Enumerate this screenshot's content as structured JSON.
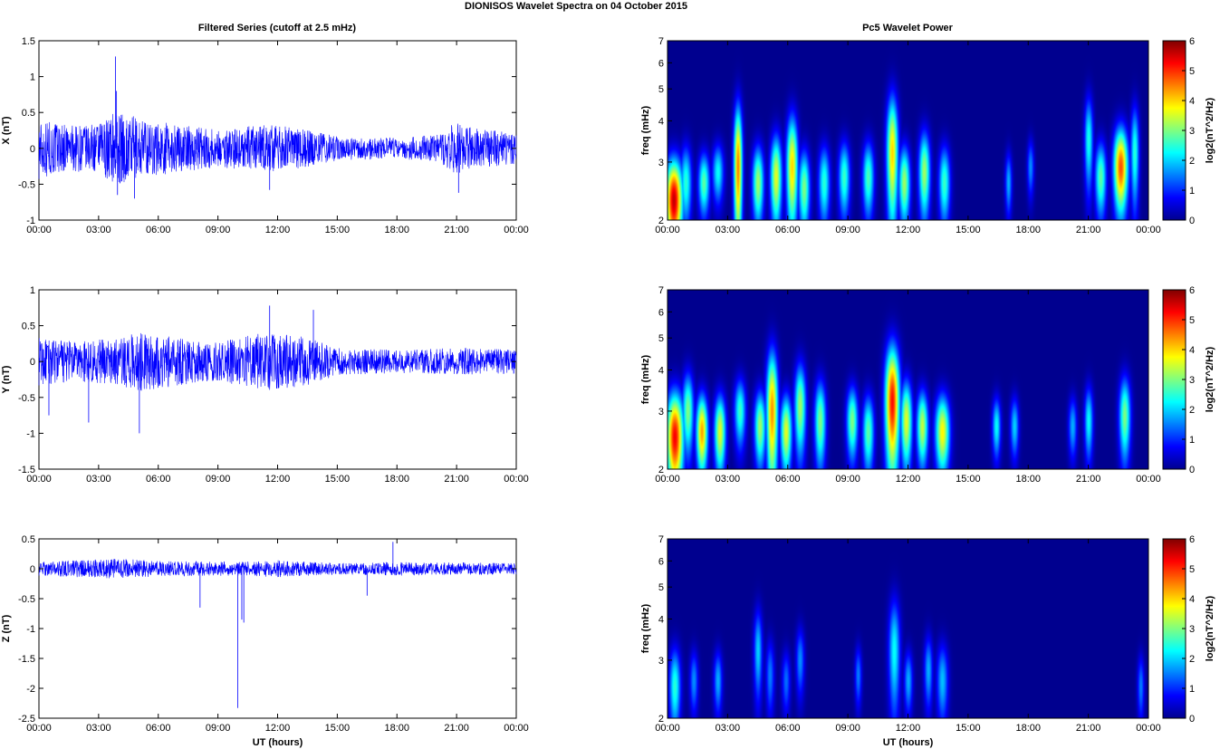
{
  "figure": {
    "title": "DIONISOS Wavelet Spectra on 04 October   2015",
    "left_title": "Filtered Series (cutoff at 2.5 mHz)",
    "right_title": "Pc5 Wavelet Power"
  },
  "colors": {
    "trace": "#0000ff",
    "axis": "#000000",
    "background": "#ffffff",
    "jet_stops": [
      "#00008f",
      "#0000ff",
      "#00ffff",
      "#ffff00",
      "#ff0000",
      "#800000"
    ]
  },
  "chart_data": [
    {
      "type": "line",
      "name": "x-series",
      "ylabel": "X (nT)",
      "xlabel": "",
      "x_range_hours": [
        0,
        24
      ],
      "xticks": [
        "00:00",
        "03:00",
        "06:00",
        "09:00",
        "12:00",
        "15:00",
        "18:00",
        "21:00",
        "00:00"
      ],
      "ylim": [
        -1,
        1.5
      ],
      "yticks": [
        "-1",
        "-0.5",
        "0",
        "0.5",
        "1",
        "1.5"
      ],
      "ytick_values": [
        -1,
        -0.5,
        0,
        0.5,
        1,
        1.5
      ],
      "grid": false,
      "amplitude_envelope": [
        {
          "t": 0,
          "a": 0.45
        },
        {
          "t": 1.5,
          "a": 0.35
        },
        {
          "t": 3,
          "a": 0.35
        },
        {
          "t": 3.8,
          "a": 0.55
        },
        {
          "t": 5,
          "a": 0.45
        },
        {
          "t": 7,
          "a": 0.35
        },
        {
          "t": 9,
          "a": 0.28
        },
        {
          "t": 11.5,
          "a": 0.35
        },
        {
          "t": 13,
          "a": 0.3
        },
        {
          "t": 15,
          "a": 0.18
        },
        {
          "t": 18,
          "a": 0.15
        },
        {
          "t": 20,
          "a": 0.2
        },
        {
          "t": 21,
          "a": 0.4
        },
        {
          "t": 22,
          "a": 0.3
        },
        {
          "t": 24,
          "a": 0.22
        }
      ],
      "spikes": [
        {
          "t": 3.85,
          "v": 1.28
        },
        {
          "t": 3.9,
          "v": 0.8
        },
        {
          "t": 3.95,
          "v": -0.65
        },
        {
          "t": 4.8,
          "v": -0.7
        },
        {
          "t": 11.6,
          "v": -0.58
        },
        {
          "t": 21.1,
          "v": -0.62
        }
      ]
    },
    {
      "type": "line",
      "name": "y-series",
      "ylabel": "Y (nT)",
      "xlabel": "",
      "x_range_hours": [
        0,
        24
      ],
      "xticks": [
        "00:00",
        "03:00",
        "06:00",
        "09:00",
        "12:00",
        "15:00",
        "18:00",
        "21:00",
        "00:00"
      ],
      "ylim": [
        -1.5,
        1
      ],
      "yticks": [
        "-1.5",
        "-1",
        "-0.5",
        "0",
        "0.5",
        "1"
      ],
      "ytick_values": [
        -1.5,
        -1,
        -0.5,
        0,
        0.5,
        1
      ],
      "grid": false,
      "amplitude_envelope": [
        {
          "t": 0,
          "a": 0.35
        },
        {
          "t": 2,
          "a": 0.3
        },
        {
          "t": 4,
          "a": 0.35
        },
        {
          "t": 5,
          "a": 0.45
        },
        {
          "t": 7,
          "a": 0.35
        },
        {
          "t": 9,
          "a": 0.28
        },
        {
          "t": 11.5,
          "a": 0.45
        },
        {
          "t": 13.5,
          "a": 0.35
        },
        {
          "t": 15,
          "a": 0.2
        },
        {
          "t": 18,
          "a": 0.17
        },
        {
          "t": 21,
          "a": 0.2
        },
        {
          "t": 24,
          "a": 0.18
        }
      ],
      "spikes": [
        {
          "t": 0.5,
          "v": -0.75
        },
        {
          "t": 2.5,
          "v": -0.85
        },
        {
          "t": 5.05,
          "v": -1.0
        },
        {
          "t": 11.6,
          "v": 0.78
        },
        {
          "t": 13.8,
          "v": 0.72
        }
      ]
    },
    {
      "type": "line",
      "name": "z-series",
      "ylabel": "Z (nT)",
      "xlabel": "UT (hours)",
      "x_range_hours": [
        0,
        24
      ],
      "xticks": [
        "00:00",
        "03:00",
        "06:00",
        "09:00",
        "12:00",
        "15:00",
        "18:00",
        "21:00",
        "00:00"
      ],
      "ylim": [
        -2.5,
        0.5
      ],
      "yticks": [
        "-2.5",
        "-2",
        "-1.5",
        "-1",
        "-0.5",
        "0",
        "0.5"
      ],
      "ytick_values": [
        -2.5,
        -2,
        -1.5,
        -1,
        -0.5,
        0,
        0.5
      ],
      "grid": false,
      "amplitude_envelope": [
        {
          "t": 0,
          "a": 0.12
        },
        {
          "t": 4,
          "a": 0.18
        },
        {
          "t": 6,
          "a": 0.14
        },
        {
          "t": 10,
          "a": 0.12
        },
        {
          "t": 12,
          "a": 0.15
        },
        {
          "t": 15,
          "a": 0.1
        },
        {
          "t": 18,
          "a": 0.12
        },
        {
          "t": 24,
          "a": 0.1
        }
      ],
      "spikes": [
        {
          "t": 8.1,
          "v": -0.65
        },
        {
          "t": 10.0,
          "v": -2.33
        },
        {
          "t": 10.2,
          "v": -0.85
        },
        {
          "t": 10.3,
          "v": -0.9
        },
        {
          "t": 16.5,
          "v": -0.45
        },
        {
          "t": 17.8,
          "v": 0.45
        }
      ]
    },
    {
      "type": "heatmap",
      "name": "x-wavelet",
      "ylabel": "freq (mHz)",
      "xlabel": "",
      "x_range_hours": [
        0,
        24
      ],
      "xticks": [
        "00:00",
        "03:00",
        "06:00",
        "09:00",
        "12:00",
        "15:00",
        "18:00",
        "21:00",
        "00:00"
      ],
      "ylim_mHz": [
        2,
        7
      ],
      "y_scale": "log",
      "yticks": [
        "2",
        "3",
        "4",
        "5",
        "6",
        "7"
      ],
      "ytick_values": [
        2,
        3,
        4,
        5,
        6,
        7
      ],
      "colorbar_label": "log2(nT^2/Hz)",
      "colorbar_range": [
        0,
        6
      ],
      "colorbar_ticks": [
        "0",
        "1",
        "2",
        "3",
        "4",
        "5",
        "6"
      ],
      "blobs": [
        {
          "t": 0.3,
          "f": 2.3,
          "p": 5.6,
          "dt": 0.3,
          "df": 0.5
        },
        {
          "t": 0.9,
          "f": 2.6,
          "p": 2.5,
          "dt": 0.2,
          "df": 0.5
        },
        {
          "t": 1.8,
          "f": 2.6,
          "p": 2.8,
          "dt": 0.2,
          "df": 0.4
        },
        {
          "t": 2.5,
          "f": 2.8,
          "p": 2.3,
          "dt": 0.2,
          "df": 0.4
        },
        {
          "t": 3.5,
          "f": 2.9,
          "p": 4.5,
          "dt": 0.15,
          "df": 1.0
        },
        {
          "t": 4.5,
          "f": 2.6,
          "p": 3.2,
          "dt": 0.2,
          "df": 0.5
        },
        {
          "t": 5.4,
          "f": 2.7,
          "p": 3.6,
          "dt": 0.2,
          "df": 0.6
        },
        {
          "t": 6.2,
          "f": 2.9,
          "p": 4.0,
          "dt": 0.2,
          "df": 0.8
        },
        {
          "t": 6.8,
          "f": 2.5,
          "p": 3.0,
          "dt": 0.2,
          "df": 0.5
        },
        {
          "t": 7.8,
          "f": 2.6,
          "p": 2.5,
          "dt": 0.2,
          "df": 0.5
        },
        {
          "t": 8.8,
          "f": 2.7,
          "p": 2.6,
          "dt": 0.2,
          "df": 0.5
        },
        {
          "t": 10.0,
          "f": 2.7,
          "p": 2.7,
          "dt": 0.2,
          "df": 0.5
        },
        {
          "t": 11.2,
          "f": 3.2,
          "p": 4.0,
          "dt": 0.2,
          "df": 1.0
        },
        {
          "t": 11.8,
          "f": 2.6,
          "p": 3.2,
          "dt": 0.2,
          "df": 0.5
        },
        {
          "t": 12.8,
          "f": 2.8,
          "p": 3.2,
          "dt": 0.2,
          "df": 0.6
        },
        {
          "t": 13.8,
          "f": 2.6,
          "p": 2.6,
          "dt": 0.2,
          "df": 0.5
        },
        {
          "t": 17.0,
          "f": 2.6,
          "p": 1.8,
          "dt": 0.12,
          "df": 0.4
        },
        {
          "t": 18.1,
          "f": 2.9,
          "p": 1.6,
          "dt": 0.12,
          "df": 0.4
        },
        {
          "t": 21.0,
          "f": 3.5,
          "p": 2.4,
          "dt": 0.15,
          "df": 0.8
        },
        {
          "t": 21.6,
          "f": 2.7,
          "p": 2.8,
          "dt": 0.2,
          "df": 0.5
        },
        {
          "t": 22.6,
          "f": 2.9,
          "p": 4.8,
          "dt": 0.25,
          "df": 0.6
        },
        {
          "t": 23.3,
          "f": 3.2,
          "p": 2.5,
          "dt": 0.15,
          "df": 0.8
        }
      ]
    },
    {
      "type": "heatmap",
      "name": "y-wavelet",
      "ylabel": "freq (mHz)",
      "xlabel": "",
      "x_range_hours": [
        0,
        24
      ],
      "xticks": [
        "00:00",
        "03:00",
        "06:00",
        "09:00",
        "12:00",
        "15:00",
        "18:00",
        "21:00",
        "00:00"
      ],
      "ylim_mHz": [
        2,
        7
      ],
      "y_scale": "log",
      "yticks": [
        "2",
        "3",
        "4",
        "5",
        "6",
        "7"
      ],
      "ytick_values": [
        2,
        3,
        4,
        5,
        6,
        7
      ],
      "colorbar_label": "log2(nT^2/Hz)",
      "colorbar_range": [
        0,
        6
      ],
      "colorbar_ticks": [
        "0",
        "1",
        "2",
        "3",
        "4",
        "5",
        "6"
      ],
      "blobs": [
        {
          "t": 0.35,
          "f": 2.5,
          "p": 5.3,
          "dt": 0.3,
          "df": 0.6
        },
        {
          "t": 1.0,
          "f": 3.0,
          "p": 3.0,
          "dt": 0.2,
          "df": 0.6
        },
        {
          "t": 1.7,
          "f": 2.6,
          "p": 4.3,
          "dt": 0.2,
          "df": 0.5
        },
        {
          "t": 2.6,
          "f": 2.6,
          "p": 3.6,
          "dt": 0.2,
          "df": 0.5
        },
        {
          "t": 3.6,
          "f": 3.0,
          "p": 2.6,
          "dt": 0.2,
          "df": 0.5
        },
        {
          "t": 4.6,
          "f": 2.7,
          "p": 3.2,
          "dt": 0.2,
          "df": 0.5
        },
        {
          "t": 5.2,
          "f": 3.0,
          "p": 4.4,
          "dt": 0.2,
          "df": 1.0
        },
        {
          "t": 5.9,
          "f": 2.6,
          "p": 3.6,
          "dt": 0.2,
          "df": 0.5
        },
        {
          "t": 6.6,
          "f": 3.1,
          "p": 3.2,
          "dt": 0.2,
          "df": 0.7
        },
        {
          "t": 7.6,
          "f": 2.8,
          "p": 3.0,
          "dt": 0.2,
          "df": 0.6
        },
        {
          "t": 9.2,
          "f": 2.8,
          "p": 3.0,
          "dt": 0.2,
          "df": 0.5
        },
        {
          "t": 10.0,
          "f": 2.6,
          "p": 2.8,
          "dt": 0.2,
          "df": 0.5
        },
        {
          "t": 11.2,
          "f": 3.2,
          "p": 5.2,
          "dt": 0.25,
          "df": 1.0
        },
        {
          "t": 11.9,
          "f": 2.8,
          "p": 3.6,
          "dt": 0.2,
          "df": 0.6
        },
        {
          "t": 12.7,
          "f": 2.7,
          "p": 3.4,
          "dt": 0.2,
          "df": 0.5
        },
        {
          "t": 13.7,
          "f": 2.6,
          "p": 3.8,
          "dt": 0.25,
          "df": 0.5
        },
        {
          "t": 16.4,
          "f": 2.7,
          "p": 2.3,
          "dt": 0.15,
          "df": 0.4
        },
        {
          "t": 17.3,
          "f": 2.7,
          "p": 2.0,
          "dt": 0.15,
          "df": 0.4
        },
        {
          "t": 20.2,
          "f": 2.7,
          "p": 1.8,
          "dt": 0.15,
          "df": 0.4
        },
        {
          "t": 21.0,
          "f": 2.8,
          "p": 2.3,
          "dt": 0.15,
          "df": 0.5
        },
        {
          "t": 22.8,
          "f": 2.9,
          "p": 3.0,
          "dt": 0.2,
          "df": 0.6
        }
      ]
    },
    {
      "type": "heatmap",
      "name": "z-wavelet",
      "ylabel": "freq (mHz)",
      "xlabel": "UT (hours)",
      "x_range_hours": [
        0,
        24
      ],
      "xticks": [
        "00:00",
        "03:00",
        "06:00",
        "09:00",
        "12:00",
        "15:00",
        "18:00",
        "21:00",
        "00:00"
      ],
      "ylim_mHz": [
        2,
        7
      ],
      "y_scale": "log",
      "yticks": [
        "2",
        "3",
        "4",
        "5",
        "6",
        "7"
      ],
      "ytick_values": [
        2,
        3,
        4,
        5,
        6,
        7
      ],
      "colorbar_label": "log2(nT^2/Hz)",
      "colorbar_range": [
        0,
        6
      ],
      "colorbar_ticks": [
        "0",
        "1",
        "2",
        "3",
        "4",
        "5",
        "6"
      ],
      "blobs": [
        {
          "t": 0.35,
          "f": 2.5,
          "p": 2.5,
          "dt": 0.2,
          "df": 0.5
        },
        {
          "t": 1.3,
          "f": 2.6,
          "p": 1.6,
          "dt": 0.15,
          "df": 0.4
        },
        {
          "t": 2.5,
          "f": 2.6,
          "p": 1.8,
          "dt": 0.15,
          "df": 0.4
        },
        {
          "t": 4.5,
          "f": 3.2,
          "p": 2.0,
          "dt": 0.15,
          "df": 0.7
        },
        {
          "t": 5.1,
          "f": 2.7,
          "p": 1.5,
          "dt": 0.15,
          "df": 0.5
        },
        {
          "t": 5.9,
          "f": 2.6,
          "p": 1.4,
          "dt": 0.15,
          "df": 0.4
        },
        {
          "t": 6.6,
          "f": 3.0,
          "p": 1.6,
          "dt": 0.15,
          "df": 0.5
        },
        {
          "t": 9.5,
          "f": 2.7,
          "p": 1.5,
          "dt": 0.12,
          "df": 0.4
        },
        {
          "t": 11.3,
          "f": 3.2,
          "p": 2.3,
          "dt": 0.2,
          "df": 0.9
        },
        {
          "t": 12.0,
          "f": 2.6,
          "p": 1.8,
          "dt": 0.15,
          "df": 0.4
        },
        {
          "t": 13.0,
          "f": 2.8,
          "p": 1.8,
          "dt": 0.15,
          "df": 0.5
        },
        {
          "t": 13.7,
          "f": 2.6,
          "p": 1.9,
          "dt": 0.2,
          "df": 0.5
        },
        {
          "t": 23.6,
          "f": 2.5,
          "p": 1.5,
          "dt": 0.12,
          "df": 0.4
        }
      ]
    }
  ]
}
